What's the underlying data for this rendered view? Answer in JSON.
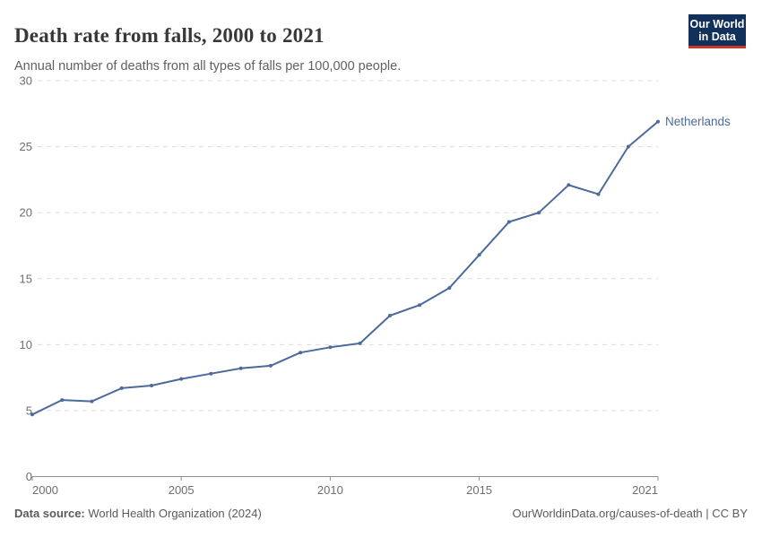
{
  "header": {
    "title": "Death rate from falls, 2000 to 2021",
    "subtitle": "Annual number of deaths from all types of falls per 100,000 people.",
    "logo": {
      "line1": "Our World",
      "line2": "in Data",
      "bg_color": "#12315a",
      "accent_color": "#cf3429"
    }
  },
  "chart_data": {
    "type": "line",
    "title": "Death rate from falls, 2000 to 2021",
    "x": [
      2000,
      2001,
      2002,
      2003,
      2004,
      2005,
      2006,
      2007,
      2008,
      2009,
      2010,
      2011,
      2012,
      2013,
      2014,
      2015,
      2016,
      2017,
      2018,
      2019,
      2020,
      2021
    ],
    "series": [
      {
        "name": "Netherlands",
        "color": "#4C6A9C",
        "values": [
          4.7,
          5.8,
          5.7,
          6.7,
          6.9,
          7.4,
          7.8,
          8.2,
          8.4,
          9.4,
          9.8,
          10.1,
          12.2,
          13.0,
          14.3,
          16.8,
          19.3,
          20.0,
          22.1,
          21.4,
          25.0,
          26.9
        ]
      }
    ],
    "ylim": [
      0,
      30
    ],
    "yticks": [
      0,
      5,
      10,
      15,
      20,
      25,
      30
    ],
    "xticks": [
      2000,
      2005,
      2010,
      2015,
      2021
    ],
    "xlabel": "",
    "ylabel": "",
    "grid": "horizontal-dashed",
    "legend_position": "end-of-line-label"
  },
  "colors": {
    "line": "#4C6A9C",
    "tick_label": "#6e6e6e",
    "grid": "#dcdcdc",
    "axis": "#8f8f8f",
    "title_text": "#383838",
    "subtitle_text": "#616161",
    "footer_text": "#5b5b5b"
  },
  "footer": {
    "source_label": "Data source:",
    "source_text": " World Health Organization (2024)",
    "credit": "OurWorldinData.org/causes-of-death | CC BY"
  }
}
